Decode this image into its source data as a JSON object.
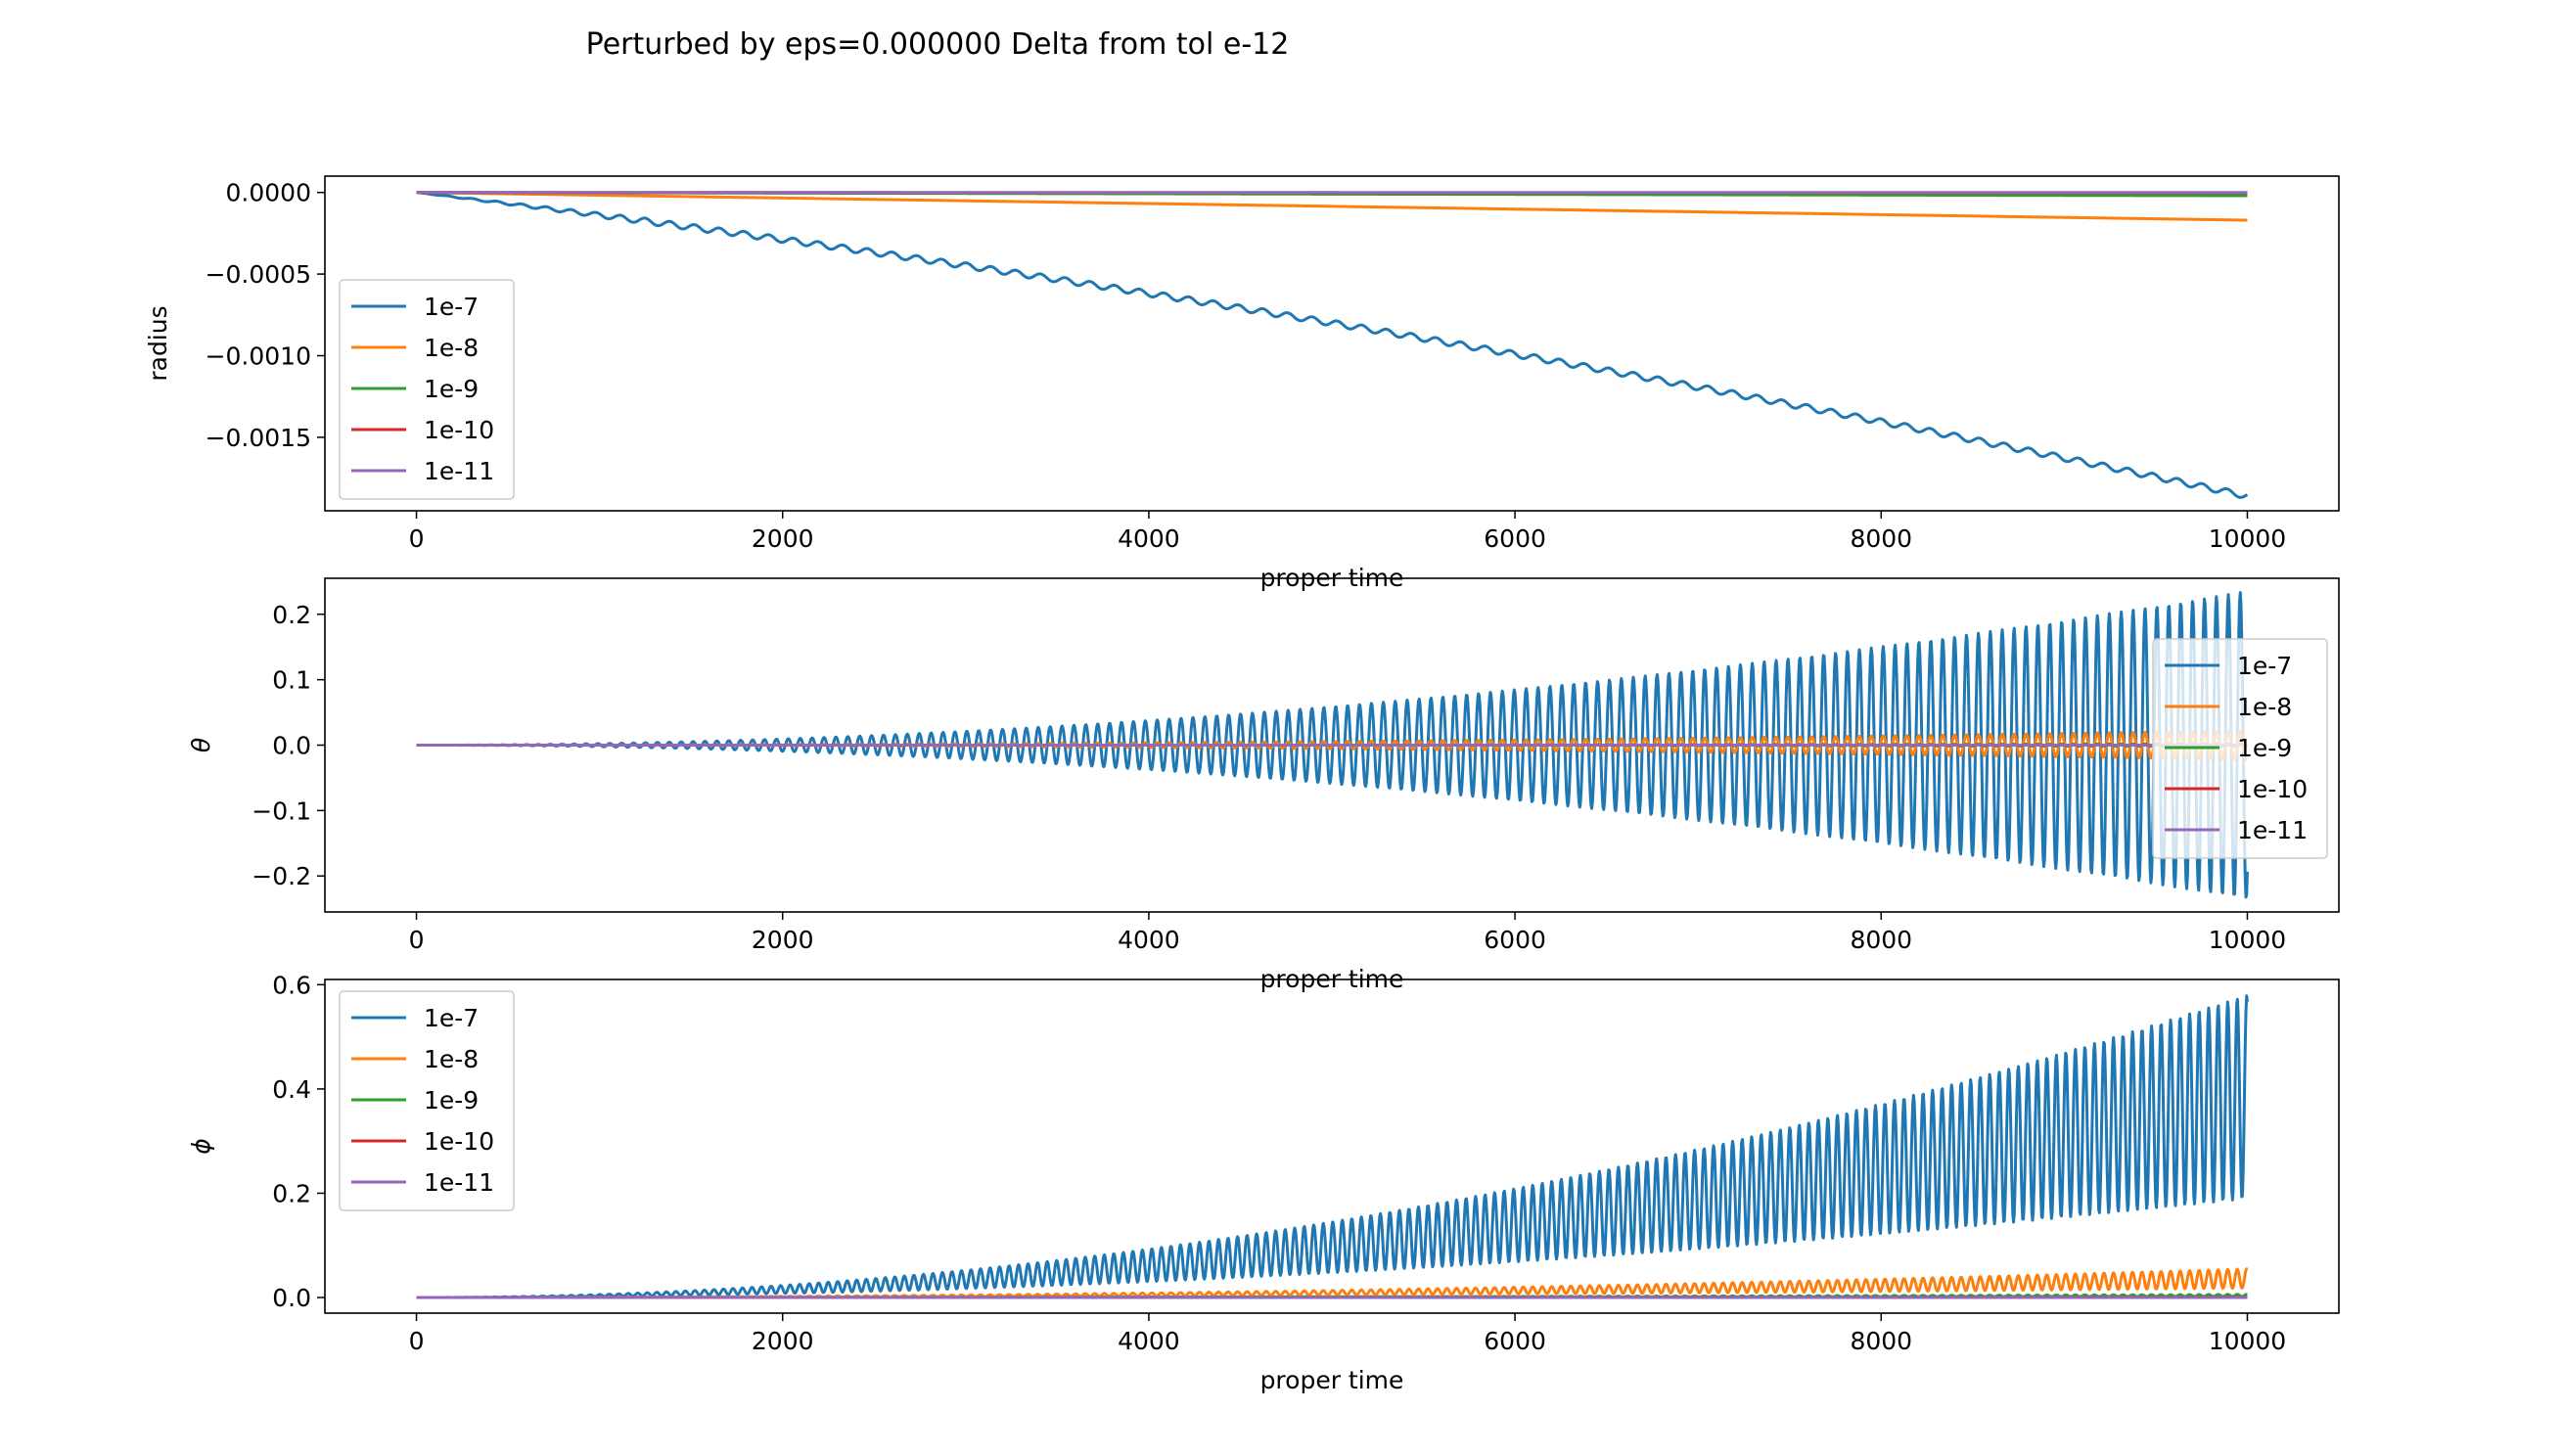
{
  "figure": {
    "title": "Perturbed by eps=0.000000 Delta from tol e-12"
  },
  "chart_data": [
    {
      "type": "line",
      "xlabel": "proper time",
      "ylabel": "radius",
      "xlim": [
        -500,
        10500
      ],
      "ylim": [
        -0.00195,
        0.0001
      ],
      "xticks": [
        0,
        2000,
        4000,
        6000,
        8000,
        10000
      ],
      "xticklabels": [
        "0",
        "2000",
        "4000",
        "6000",
        "8000",
        "10000"
      ],
      "yticks": [
        0.0,
        -0.0005,
        -0.001,
        -0.0015
      ],
      "yticklabels": [
        "0.0000",
        "−0.0005",
        "−0.0010",
        "−0.0015"
      ],
      "legend": "left",
      "series": [
        {
          "name": "1e-7",
          "color": "#1f77b4",
          "trend": "quadratic",
          "end": -0.00186,
          "osc": "ripple",
          "ripple": 1.8e-05
        },
        {
          "name": "1e-8",
          "color": "#ff7f0e",
          "trend": "linear",
          "end": -0.00017
        },
        {
          "name": "1e-9",
          "color": "#2ca02c",
          "trend": "linear",
          "end": -2e-05
        },
        {
          "name": "1e-10",
          "color": "#d62728",
          "trend": "linear",
          "end": -3e-06
        },
        {
          "name": "1e-11",
          "color": "#9467bd",
          "trend": "linear",
          "end": -5e-07
        }
      ]
    },
    {
      "type": "line",
      "xlabel": "proper time",
      "ylabel": "θ",
      "xlim": [
        -500,
        10500
      ],
      "ylim": [
        -0.255,
        0.255
      ],
      "xticks": [
        0,
        2000,
        4000,
        6000,
        8000,
        10000
      ],
      "xticklabels": [
        "0",
        "2000",
        "4000",
        "6000",
        "8000",
        "10000"
      ],
      "yticks": [
        0.2,
        0.1,
        0.0,
        -0.1,
        -0.2
      ],
      "yticklabels": [
        "0.2",
        "0.1",
        "0.0",
        "−0.1",
        "−0.2"
      ],
      "legend": "right",
      "series": [
        {
          "name": "1e-7",
          "color": "#1f77b4",
          "osc": "symmetric",
          "amp_end": 0.235
        },
        {
          "name": "1e-8",
          "color": "#ff7f0e",
          "osc": "symmetric",
          "amp_end": 0.022
        },
        {
          "name": "1e-9",
          "color": "#2ca02c",
          "osc": "symmetric",
          "amp_end": 0.002
        },
        {
          "name": "1e-10",
          "color": "#d62728",
          "osc": "symmetric",
          "amp_end": 0.0003
        },
        {
          "name": "1e-11",
          "color": "#9467bd",
          "osc": "symmetric",
          "amp_end": 3e-05
        }
      ]
    },
    {
      "type": "line",
      "xlabel": "proper time",
      "ylabel": "ϕ",
      "xlim": [
        -500,
        10500
      ],
      "ylim": [
        -0.03,
        0.61
      ],
      "xticks": [
        0,
        2000,
        4000,
        6000,
        8000,
        10000
      ],
      "xticklabels": [
        "0",
        "2000",
        "4000",
        "6000",
        "8000",
        "10000"
      ],
      "yticks": [
        0.0,
        0.2,
        0.4,
        0.6
      ],
      "yticklabels": [
        "0.0",
        "0.2",
        "0.4",
        "0.6"
      ],
      "legend": "left",
      "series": [
        {
          "name": "1e-7",
          "color": "#1f77b4",
          "osc": "band",
          "upper_end": 0.58,
          "lower_end": 0.19
        },
        {
          "name": "1e-8",
          "color": "#ff7f0e",
          "osc": "band",
          "upper_end": 0.055,
          "lower_end": 0.018
        },
        {
          "name": "1e-9",
          "color": "#2ca02c",
          "osc": "band",
          "upper_end": 0.006,
          "lower_end": 0.002
        },
        {
          "name": "1e-10",
          "color": "#d62728",
          "osc": "band",
          "upper_end": 0.0006,
          "lower_end": 0.0002
        },
        {
          "name": "1e-11",
          "color": "#9467bd",
          "osc": "band",
          "upper_end": 6e-05,
          "lower_end": 2e-05
        }
      ]
    }
  ]
}
